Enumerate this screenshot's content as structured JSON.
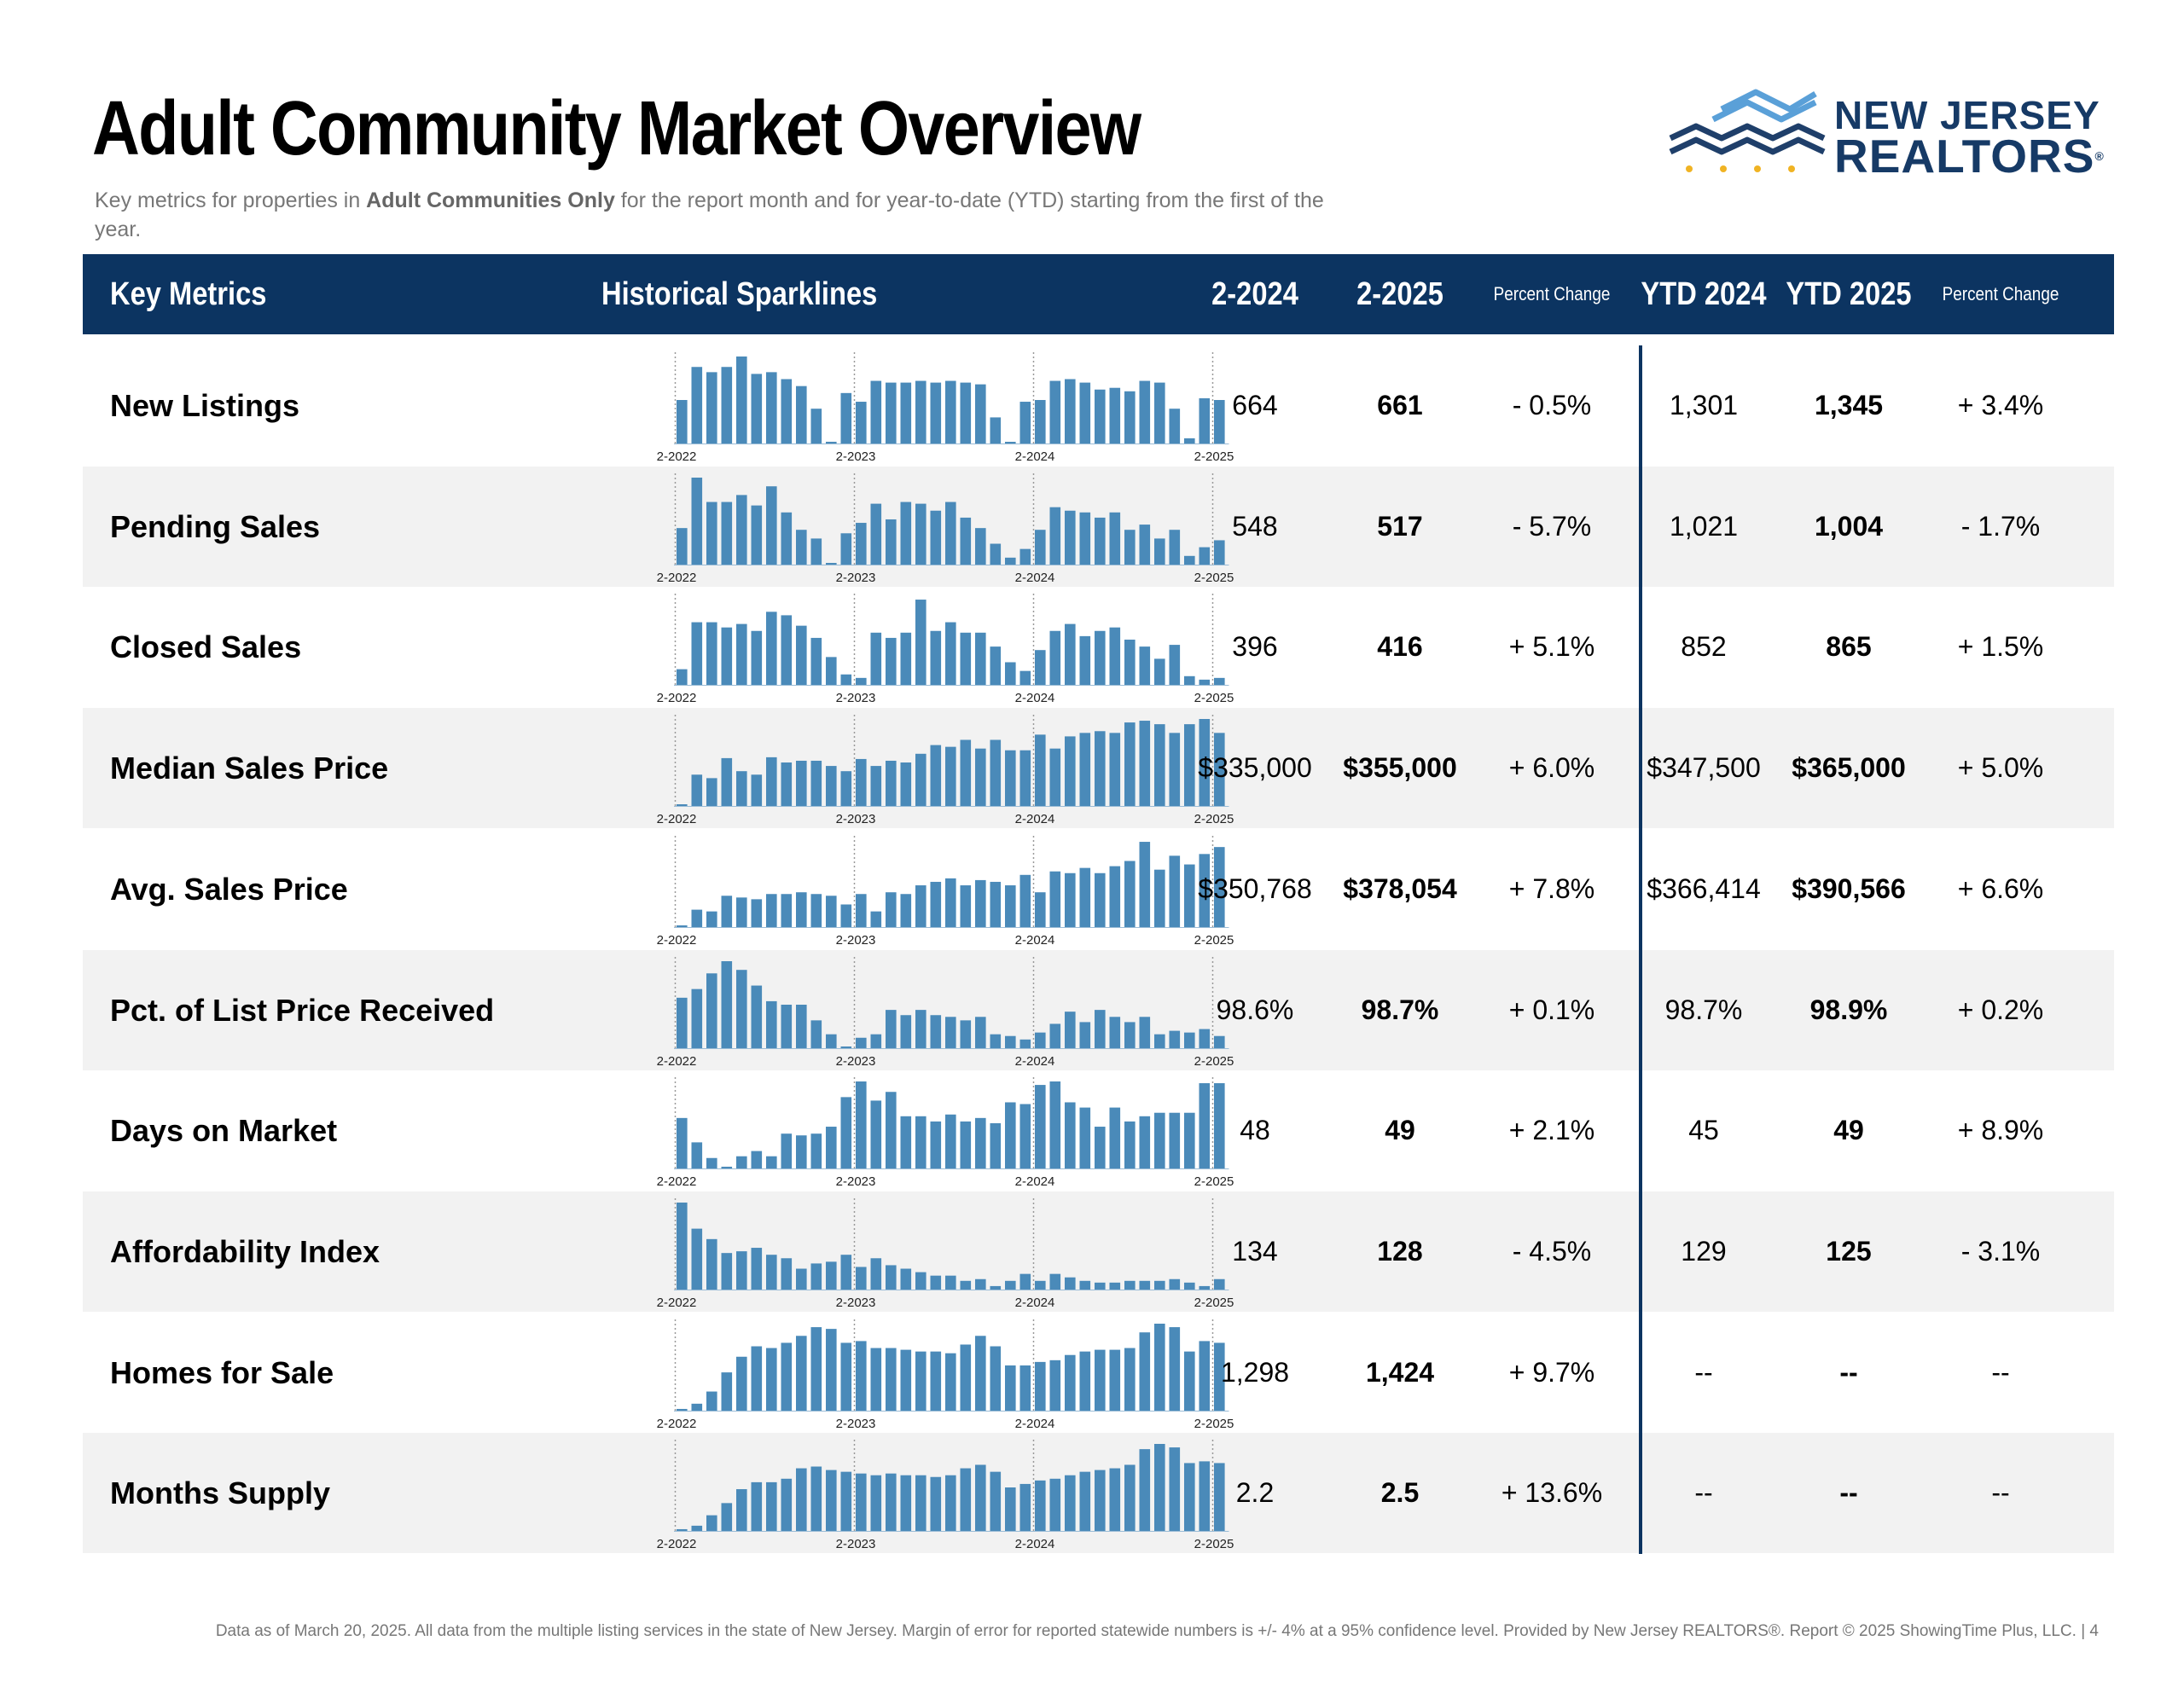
{
  "title": "Adult Community Market Overview",
  "subtitle": {
    "pre": "Key metrics for properties in ",
    "bold": "Adult Communities Only",
    "post": " for the report month and for year-to-date (YTD) starting from the first of the year."
  },
  "logo": {
    "line1": "NEW JERSEY",
    "line2": "REALTORS",
    "reg": "®"
  },
  "colors": {
    "header_bg": "#0c3461",
    "bar": "#4a8ab9",
    "alt_row": "#f2f2f2"
  },
  "header": {
    "key_metrics": "Key Metrics",
    "sparklines": "Historical Sparklines",
    "col1": "2-2024",
    "col2": "2-2025",
    "pct1": "Percent Change",
    "col3": "YTD 2024",
    "col4": "YTD 2025",
    "pct2": "Percent Change"
  },
  "sparkline_labels": [
    "2-2022",
    "2-2023",
    "2-2024",
    "2-2025"
  ],
  "rows": [
    {
      "name": "New Listings",
      "v1": "664",
      "v2": "661",
      "pct": "- 0.5%",
      "ytd1": "1,301",
      "ytd2": "1,345",
      "ytdpct": "+ 3.4%",
      "spark": [
        50,
        88,
        82,
        88,
        100,
        80,
        82,
        74,
        66,
        40,
        2,
        58,
        48,
        72,
        70,
        70,
        72,
        70,
        72,
        70,
        68,
        30,
        0,
        48,
        50,
        72,
        74,
        70,
        62,
        64,
        60,
        72,
        70,
        40,
        6,
        52,
        50
      ]
    },
    {
      "name": "Pending Sales",
      "v1": "548",
      "v2": "517",
      "pct": "- 5.7%",
      "ytd1": "1,021",
      "ytd2": "1,004",
      "ytdpct": "- 1.7%",
      "spark": [
        42,
        100,
        72,
        72,
        80,
        68,
        90,
        60,
        40,
        30,
        0,
        36,
        48,
        70,
        52,
        72,
        70,
        62,
        72,
        54,
        42,
        24,
        8,
        18,
        40,
        66,
        62,
        60,
        54,
        60,
        40,
        46,
        30,
        40,
        10,
        20,
        28
      ]
    },
    {
      "name": "Closed Sales",
      "v1": "396",
      "v2": "416",
      "pct": "+ 5.1%",
      "ytd1": "852",
      "ytd2": "865",
      "ytdpct": "+ 1.5%",
      "spark": [
        18,
        72,
        72,
        66,
        70,
        62,
        84,
        80,
        68,
        54,
        32,
        12,
        8,
        60,
        54,
        60,
        98,
        62,
        72,
        60,
        60,
        44,
        26,
        16,
        40,
        62,
        70,
        56,
        62,
        66,
        52,
        44,
        30,
        46,
        10,
        6,
        8
      ]
    },
    {
      "name": "Median Sales Price",
      "v1": "$335,000",
      "v2": "$355,000",
      "pct": "+ 6.0%",
      "ytd1": "$347,500",
      "ytd2": "$365,000",
      "ytdpct": "+ 5.0%",
      "spark": [
        0,
        36,
        32,
        55,
        40,
        36,
        56,
        50,
        52,
        52,
        46,
        40,
        54,
        46,
        52,
        50,
        60,
        70,
        68,
        76,
        66,
        76,
        64,
        64,
        82,
        66,
        80,
        84,
        86,
        84,
        96,
        98,
        94,
        84,
        94,
        100,
        84
      ]
    },
    {
      "name": "Avg. Sales Price",
      "v1": "$350,768",
      "v2": "$378,054",
      "pct": "+ 7.8%",
      "ytd1": "$366,414",
      "ytd2": "$390,566",
      "ytdpct": "+ 6.6%",
      "spark": [
        0,
        20,
        18,
        36,
        34,
        32,
        38,
        38,
        40,
        38,
        36,
        26,
        38,
        18,
        40,
        38,
        48,
        52,
        56,
        48,
        54,
        52,
        48,
        60,
        40,
        64,
        62,
        68,
        62,
        70,
        76,
        98,
        66,
        82,
        72,
        84,
        92
      ]
    },
    {
      "name": "Pct. of List Price Received",
      "v1": "98.6%",
      "v2": "98.7%",
      "pct": "+ 0.1%",
      "ytd1": "98.7%",
      "ytd2": "98.9%",
      "ytdpct": "+ 0.2%",
      "spark": [
        58,
        68,
        86,
        100,
        90,
        72,
        54,
        50,
        50,
        32,
        16,
        0,
        12,
        16,
        44,
        38,
        44,
        38,
        36,
        32,
        36,
        16,
        14,
        10,
        18,
        28,
        42,
        30,
        44,
        36,
        30,
        36,
        16,
        20,
        18,
        22,
        14
      ]
    },
    {
      "name": "Days on Market",
      "v1": "48",
      "v2": "49",
      "pct": "+ 2.1%",
      "ytd1": "45",
      "ytd2": "49",
      "ytdpct": "+ 8.9%",
      "spark": [
        58,
        30,
        12,
        2,
        14,
        20,
        14,
        40,
        38,
        40,
        48,
        82,
        100,
        78,
        88,
        60,
        60,
        54,
        62,
        54,
        58,
        52,
        76,
        74,
        96,
        100,
        76,
        70,
        48,
        70,
        54,
        60,
        64,
        64,
        64,
        98,
        98
      ]
    },
    {
      "name": "Affordability Index",
      "v1": "134",
      "v2": "128",
      "pct": "- 4.5%",
      "ytd1": "129",
      "ytd2": "125",
      "ytdpct": "- 3.1%",
      "spark": [
        100,
        70,
        58,
        42,
        44,
        48,
        40,
        36,
        24,
        30,
        32,
        40,
        26,
        36,
        28,
        24,
        20,
        16,
        16,
        10,
        12,
        4,
        10,
        18,
        10,
        18,
        14,
        10,
        8,
        8,
        10,
        10,
        10,
        12,
        8,
        4,
        12
      ]
    },
    {
      "name": "Homes for Sale",
      "v1": "1,298",
      "v2": "1,424",
      "pct": "+ 9.7%",
      "ytd1": "--",
      "ytd2": "--",
      "ytdpct": "--",
      "spark": [
        2,
        8,
        22,
        44,
        62,
        74,
        72,
        78,
        86,
        96,
        94,
        78,
        80,
        72,
        72,
        70,
        68,
        68,
        66,
        76,
        86,
        74,
        52,
        52,
        56,
        58,
        64,
        68,
        70,
        70,
        72,
        90,
        100,
        96,
        68,
        80,
        78
      ]
    },
    {
      "name": "Months Supply",
      "v1": "2.2",
      "v2": "2.5",
      "pct": "+ 13.6%",
      "ytd1": "--",
      "ytd2": "--",
      "ytdpct": "--",
      "spark": [
        2,
        6,
        18,
        32,
        48,
        56,
        56,
        60,
        72,
        74,
        70,
        68,
        66,
        64,
        66,
        64,
        64,
        62,
        64,
        72,
        76,
        68,
        50,
        54,
        58,
        60,
        64,
        68,
        70,
        72,
        76,
        94,
        100,
        96,
        78,
        80,
        78
      ]
    }
  ],
  "footer": "Data as of March 20, 2025. All data from the multiple listing services in the state of New Jersey. Margin of error for reported statewide numbers is +/- 4% at a 95% confidence level. Provided by New Jersey REALTORS®. Report © 2025 ShowingTime Plus, LLC. |  4"
}
